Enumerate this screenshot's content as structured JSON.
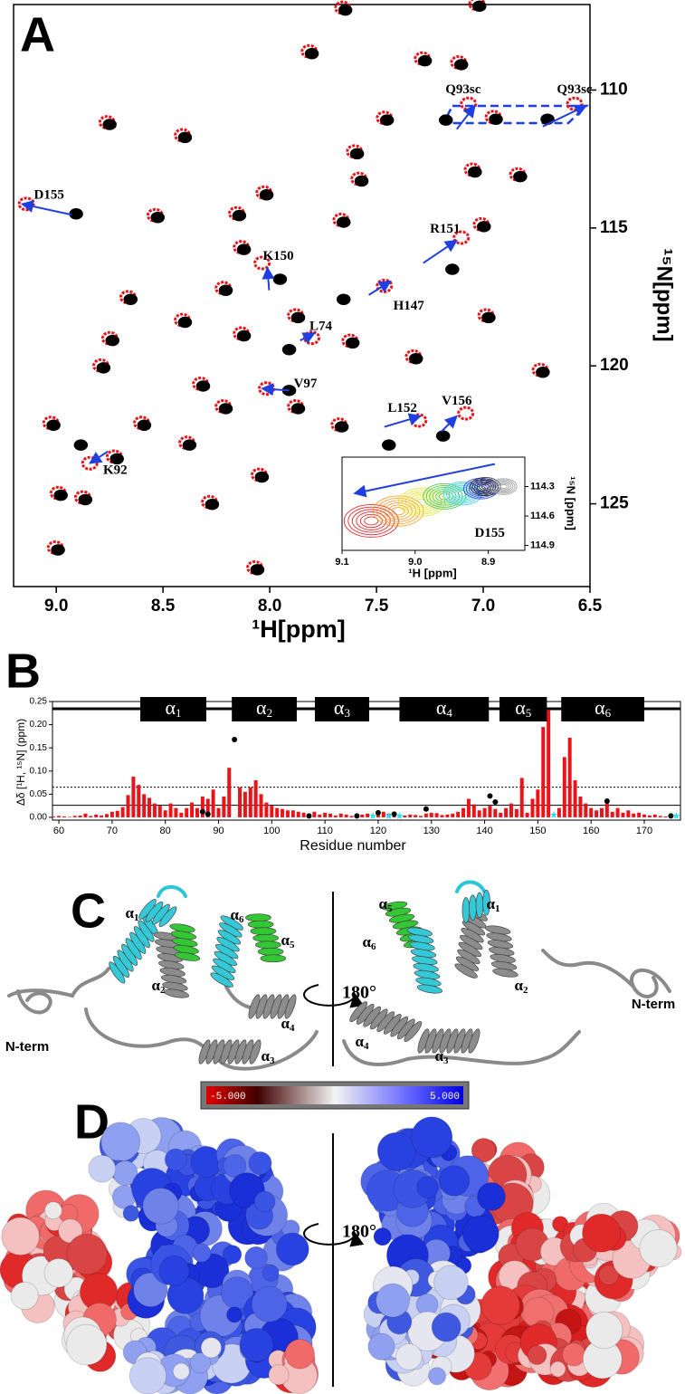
{
  "chart_data": [
    {
      "type": "scatter",
      "label": "A",
      "x_label": "¹H[ppm]",
      "y_label": "¹⁵N[ppm]",
      "xlim": [
        9.2,
        6.5
      ],
      "xticks": [
        {
          "value": 9,
          "label": "9.0"
        },
        8.5,
        {
          "value": 8,
          "label": "8.0"
        },
        7.5,
        {
          "value": 7,
          "label": "7.0"
        },
        6.5
      ],
      "ylim": [
        106.9,
        128.0
      ],
      "yticks": [
        110,
        115,
        120,
        125
      ],
      "series": [
        {
          "color": "#e8141a",
          "x": [
            7.658,
            7.03,
            7.815,
            7.285,
            7.115,
            7.463,
            7.069,
            6.953,
            6.572,
            8.762,
            8.409,
            7.603,
            7.582,
            7.051,
            6.839,
            8.027,
            9.14,
            8.537,
            8.155,
            7.666,
            7.009,
            8.133,
            8.036,
            7.103,
            8.664,
            7.463,
            8.218,
            8.409,
            7.879,
            6.987,
            8.749,
            8.133,
            7.327,
            7.624,
            8.791,
            8.324,
            6.733,
            9.025,
            8.6,
            7.675,
            8.388,
            8.843,
            7.082,
            7.302,
            8.728,
            8.049,
            8.991,
            8.876,
            8.282,
            9.004,
            8.07,
            7.879,
            8.218,
            7.803,
            8.015
          ],
          "values": [
            107.02,
            106.88,
            108.6,
            108.86,
            109.0,
            111.01,
            110.5,
            110.98,
            110.5,
            111.17,
            111.64,
            112.23,
            113.22,
            112.89,
            113.06,
            113.72,
            114.13,
            114.54,
            114.47,
            114.71,
            114.87,
            115.7,
            116.27,
            115.35,
            117.51,
            117.1,
            117.18,
            118.34,
            118.17,
            118.17,
            119.0,
            118.83,
            119.66,
            119.09,
            119.99,
            120.65,
            120.15,
            122.07,
            122.07,
            122.13,
            122.79,
            123.53,
            121.72,
            121.98,
            123.29,
            123.95,
            124.61,
            124.77,
            124.94,
            126.59,
            127.31,
            121.47,
            121.47,
            118.98,
            120.82
          ]
        },
        {
          "color": "#000000",
          "x": [
            7.646,
            7.018,
            7.803,
            7.273,
            7.103,
            7.451,
            7.175,
            6.941,
            6.699,
            8.75,
            8.397,
            7.591,
            7.57,
            7.039,
            6.827,
            8.015,
            8.907,
            8.525,
            8.143,
            7.654,
            6.997,
            8.121,
            7.952,
            7.145,
            8.652,
            7.654,
            8.206,
            8.397,
            7.867,
            6.975,
            8.737,
            8.121,
            7.315,
            7.612,
            8.779,
            8.312,
            6.721,
            9.013,
            8.588,
            7.663,
            8.376,
            8.885,
            7.188,
            7.442,
            8.716,
            8.037,
            8.979,
            8.864,
            8.27,
            8.992,
            8.058,
            7.867,
            8.206,
            7.909,
            7.909
          ],
          "values": [
            107.1,
            106.96,
            108.68,
            108.94,
            109.08,
            111.09,
            111.09,
            111.06,
            111.06,
            111.25,
            111.72,
            112.31,
            113.3,
            112.97,
            113.14,
            113.8,
            114.49,
            114.62,
            114.55,
            114.79,
            114.95,
            115.78,
            116.86,
            116.5,
            117.59,
            117.59,
            117.26,
            118.42,
            118.25,
            118.25,
            119.08,
            118.91,
            119.74,
            119.17,
            120.07,
            120.73,
            120.23,
            122.15,
            122.15,
            122.21,
            122.87,
            122.87,
            122.54,
            122.87,
            123.37,
            124.03,
            124.69,
            124.85,
            125.02,
            126.67,
            127.39,
            121.55,
            121.55,
            119.41,
            120.89
          ]
        }
      ],
      "annotations": [
        {
          "text": "D155",
          "x": 9.034,
          "y": 113.83,
          "arrow": [
            8.928,
            114.52,
            9.161,
            114.13
          ]
        },
        {
          "text": "Q93sc",
          "x": 7.094,
          "y": 110.0,
          "arrow": [
            7.124,
            111.42,
            7.039,
            110.56
          ]
        },
        {
          "text": "Q93sc",
          "x": 6.572,
          "y": 110.0,
          "arrow": [
            6.721,
            111.32,
            6.517,
            110.56
          ]
        },
        {
          "text": "K150",
          "x": 7.96,
          "y": 116.04,
          "arrow": [
            8.003,
            117.26,
            8.011,
            116.44
          ]
        },
        {
          "text": "R151",
          "x": 7.179,
          "y": 115.05,
          "arrow": [
            7.281,
            116.27,
            7.124,
            115.45
          ]
        },
        {
          "text": "H147",
          "x": 7.349,
          "y": 117.85,
          "arrow": [
            7.536,
            117.43,
            7.434,
            116.93
          ]
        },
        {
          "text": "L74",
          "x": 7.761,
          "y": 118.58,
          "arrow": [
            7.858,
            119.08,
            7.79,
            118.81
          ]
        },
        {
          "text": "V97",
          "x": 7.833,
          "y": 120.66,
          "arrow": [
            7.909,
            120.89,
            8.036,
            120.82
          ]
        },
        {
          "text": "L152",
          "x": 7.379,
          "y": 121.55,
          "arrow": [
            7.463,
            122.21,
            7.294,
            121.82
          ]
        },
        {
          "text": "V156",
          "x": 7.124,
          "y": 121.29,
          "arrow": [
            7.196,
            122.38,
            7.124,
            121.82
          ]
        },
        {
          "text": "K92",
          "x": 8.724,
          "y": 123.8,
          "arrow": [
            8.758,
            123.1,
            8.843,
            123.53
          ]
        }
      ]
    },
    {
      "type": "bar",
      "label": "B",
      "x_label": "Residue number",
      "y_label": "Δδ [¹H, ¹⁵N] (ppm)",
      "xlim": [
        58.8,
        176.8
      ],
      "xticks": [
        60,
        70,
        80,
        90,
        100,
        110,
        120,
        130,
        140,
        150,
        160,
        170
      ],
      "ylim": [
        -0.006,
        0.25
      ],
      "yticks": [
        {
          "value": 0,
          "label": "0.00"
        },
        0.05,
        {
          "value": 0.1,
          "label": "0.10"
        },
        0.15,
        {
          "value": 0.2,
          "label": "0.20"
        },
        0.25
      ],
      "series": [
        {
          "type": "bar",
          "color": "#e8141a",
          "x": [
            59,
            60,
            61,
            62,
            63,
            64,
            65,
            66,
            67,
            68,
            69,
            70,
            71,
            72,
            73,
            74,
            75,
            76,
            77,
            78,
            79,
            80,
            81,
            82,
            83,
            84,
            85,
            86,
            87,
            88,
            89,
            90,
            91,
            92,
            93,
            94,
            95,
            96,
            97,
            98,
            99,
            100,
            101,
            102,
            103,
            104,
            105,
            106,
            107,
            108,
            109,
            110,
            111,
            112,
            113,
            114,
            115,
            116,
            117,
            118,
            119,
            120,
            121,
            122,
            123,
            124,
            125,
            126,
            127,
            128,
            129,
            130,
            131,
            132,
            133,
            134,
            135,
            136,
            137,
            138,
            139,
            140,
            141,
            142,
            143,
            144,
            145,
            146,
            147,
            148,
            149,
            150,
            151,
            152,
            153,
            154,
            155,
            156,
            157,
            158,
            159,
            160,
            161,
            162,
            163,
            164,
            165,
            166,
            167,
            168,
            169,
            170,
            171,
            172,
            173,
            174,
            175,
            176
          ],
          "values": [
            0.002,
            0.003,
            0.002,
            0.001,
            0.003,
            0.004,
            0.008,
            0.003,
            0.006,
            0.004,
            0.007,
            0.012,
            0.014,
            0.022,
            0.048,
            0.088,
            0.07,
            0.05,
            0.042,
            0.03,
            0.025,
            0.015,
            0.03,
            0.02,
            0.01,
            0.02,
            0.032,
            0.02,
            0.045,
            0.04,
            0.06,
            0.02,
            0.045,
            0.107,
            null,
            0.065,
            0.055,
            0.065,
            0.08,
            0.05,
            0.032,
            0.025,
            0.02,
            0.018,
            0.015,
            0.015,
            0.012,
            0.01,
            null,
            0.012,
            0.006,
            0.01,
            0.008,
            0.004,
            0.008,
            0.006,
            0.003,
            null,
            0.006,
            0.008,
            null,
            0.005,
            0.012,
            0.008,
            0.004,
            null,
            0.004,
            0.006,
            0.005,
            0.003,
            0.008,
            0.01,
            0.009,
            0.005,
            0.006,
            0.008,
            0.012,
            0.02,
            0.04,
            0.028,
            0.015,
            0.02,
            0.025,
            0.018,
            0.01,
            0.02,
            0.03,
            0.018,
            0.085,
            0.01,
            0.04,
            0.06,
            0.195,
            0.232,
            null,
            0.02,
            0.13,
            0.172,
            0.08,
            0.045,
            0.03,
            0.02,
            0.015,
            0.02,
            0.03,
            0.012,
            0.02,
            0.01,
            0.015,
            0.008,
            0.01,
            0.006,
            0.004,
            0.006,
            0.003,
            0.002,
            0.003,
            null
          ]
        },
        {
          "type": "dot",
          "color": "#000000",
          "x": [
            87,
            88,
            93,
            107,
            116,
            120,
            123,
            129,
            141,
            142,
            163,
            175
          ],
          "values": [
            0.012,
            0.007,
            0.168,
            0.003,
            0.003,
            0.01,
            0.007,
            0.018,
            0.046,
            0.033,
            0.035,
            0.003
          ]
        },
        {
          "type": "star",
          "color": "#33dcef",
          "x": [
            119,
            122,
            124,
            153,
            176
          ],
          "values": [
            0.003,
            0.003,
            0.003,
            0.005,
            0.003
          ]
        }
      ],
      "hlines": [
        {
          "value": 0.065,
          "style": "dotted"
        },
        {
          "value": 0.026,
          "style": "solid"
        }
      ],
      "helices": [
        {
          "symbol": "α",
          "sub": "1",
          "start": 75.3,
          "end": 87.7
        },
        {
          "symbol": "α",
          "sub": "2",
          "start": 92.5,
          "end": 104.7
        },
        {
          "symbol": "α",
          "sub": "3",
          "start": 108.1,
          "end": 118.3
        },
        {
          "symbol": "α",
          "sub": "4",
          "start": 124.0,
          "end": 140.8
        },
        {
          "symbol": "α",
          "sub": "5",
          "start": 142.8,
          "end": 151.7
        },
        {
          "symbol": "α",
          "sub": "6",
          "start": 154.4,
          "end": 170.0
        }
      ]
    },
    {
      "type": "rings",
      "x_label": "¹H [ppm]",
      "y_label": "¹⁵N [ppm]",
      "xlim": [
        9.1,
        8.85
      ],
      "xticks": [
        9.1,
        {
          "value": 9,
          "label": "9.0"
        },
        8.9
      ],
      "ylim": [
        114.0,
        114.95
      ],
      "yticks": [
        114.3,
        114.6,
        114.9
      ],
      "series": [
        {
          "color": "#e8141a",
          "x": [
            9.06
          ],
          "values": [
            114.65
          ]
        },
        {
          "color": "#f59a1e",
          "x": [
            9.023
          ],
          "values": [
            114.55
          ]
        },
        {
          "color": "#e8e31e",
          "x": [
            8.991
          ],
          "values": [
            114.46
          ]
        },
        {
          "color": "#3cc83c",
          "x": [
            8.96
          ],
          "values": [
            114.4
          ]
        },
        {
          "color": "#2ccfe0",
          "x": [
            8.935
          ],
          "values": [
            114.37
          ]
        },
        {
          "color": "#1c2fe6",
          "x": [
            8.91
          ],
          "values": [
            114.32
          ]
        },
        {
          "color": "#222222",
          "x": [
            8.904
          ],
          "values": [
            114.3
          ]
        },
        {
          "color": "#9a9a9a",
          "x": [
            8.879
          ],
          "values": [
            114.3
          ]
        }
      ],
      "annotations": [
        {
          "text": "D155",
          "x": 8.898,
          "y": 114.78,
          "arrow": [
            8.891,
            114.07,
            9.083,
            114.37
          ]
        }
      ]
    }
  ],
  "panel_c": {
    "label": "C",
    "rotation": "180°",
    "left": {
      "helices": [
        {
          "symbol": "α",
          "sub": "1"
        },
        {
          "symbol": "α",
          "sub": "6"
        },
        {
          "symbol": "α",
          "sub": "5"
        },
        {
          "symbol": "α",
          "sub": "2"
        },
        {
          "symbol": "α",
          "sub": "4"
        },
        {
          "symbol": "α",
          "sub": "3"
        }
      ],
      "terminus": "N-term"
    },
    "right": {
      "helices": [
        {
          "symbol": "α",
          "sub": "5"
        },
        {
          "symbol": "α",
          "sub": "1"
        },
        {
          "symbol": "α",
          "sub": "6"
        },
        {
          "symbol": "α",
          "sub": "2"
        },
        {
          "symbol": "α",
          "sub": "4"
        },
        {
          "symbol": "α",
          "sub": "3"
        }
      ],
      "terminus": "N-term"
    }
  },
  "panel_d": {
    "label": "D",
    "rotation": "180°",
    "colorbar": {
      "min_label": "-5.000",
      "max_label": "5.000"
    }
  }
}
